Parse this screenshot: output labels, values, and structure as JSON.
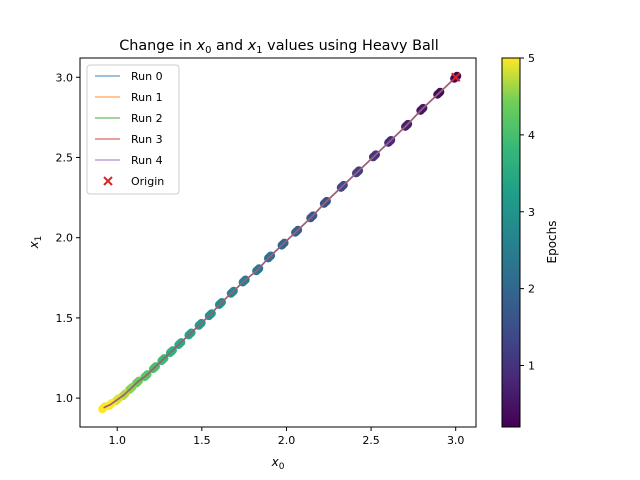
{
  "chart_data": {
    "type": "scatter",
    "title_prefix": "Change in ",
    "title_var0": "x",
    "title_sub0": "0",
    "title_mid": " and ",
    "title_var1": "x",
    "title_sub1": "1",
    "title_suffix": " values using Heavy Ball",
    "xlabel_var": "x",
    "xlabel_sub": "0",
    "ylabel_var": "x",
    "ylabel_sub": "1",
    "xlim": [
      0.78,
      3.12
    ],
    "ylim": [
      0.82,
      3.12
    ],
    "xticks": [
      "1.0",
      "1.5",
      "2.0",
      "2.5",
      "3.0"
    ],
    "yticks": [
      "1.0",
      "1.5",
      "2.0",
      "2.5",
      "3.0"
    ],
    "grid": false,
    "legend_position": "top-left",
    "series": [
      {
        "name": "Run 0",
        "color": "#1f77b4"
      },
      {
        "name": "Run 1",
        "color": "#ff7f0e"
      },
      {
        "name": "Run 2",
        "color": "#2ca02c"
      },
      {
        "name": "Run 3",
        "color": "#d62728"
      },
      {
        "name": "Run 4",
        "color": "#9467bd"
      }
    ],
    "trajectory": {
      "x": [
        3.0,
        2.9,
        2.8,
        2.71,
        2.61,
        2.52,
        2.42,
        2.33,
        2.23,
        2.15,
        2.06,
        1.98,
        1.9,
        1.83,
        1.75,
        1.68,
        1.61,
        1.55,
        1.49,
        1.43,
        1.37,
        1.32,
        1.27,
        1.22,
        1.17,
        1.12,
        1.08,
        1.04,
        1.0,
        0.96,
        0.92
      ],
      "y": [
        3.0,
        2.9,
        2.8,
        2.7,
        2.6,
        2.51,
        2.41,
        2.32,
        2.22,
        2.13,
        2.04,
        1.96,
        1.88,
        1.8,
        1.73,
        1.66,
        1.59,
        1.52,
        1.46,
        1.4,
        1.34,
        1.29,
        1.24,
        1.19,
        1.14,
        1.1,
        1.06,
        1.02,
        0.99,
        0.96,
        0.94
      ],
      "epochs": [
        0.2,
        0.37,
        0.53,
        0.7,
        0.87,
        1.03,
        1.2,
        1.37,
        1.53,
        1.7,
        1.87,
        2.03,
        2.2,
        2.37,
        2.53,
        2.7,
        2.87,
        3.03,
        3.2,
        3.37,
        3.53,
        3.7,
        3.87,
        4.03,
        4.2,
        4.37,
        4.53,
        4.7,
        4.87,
        5.0,
        5.0
      ]
    },
    "origin": {
      "name": "Origin",
      "x": 3.0,
      "y": 3.0,
      "color": "#d62728"
    },
    "colorbar": {
      "label": "Epochs",
      "range": [
        0.2,
        5.0
      ],
      "ticks": [
        "1",
        "2",
        "3",
        "4",
        "5"
      ],
      "colormap": "viridis"
    }
  }
}
